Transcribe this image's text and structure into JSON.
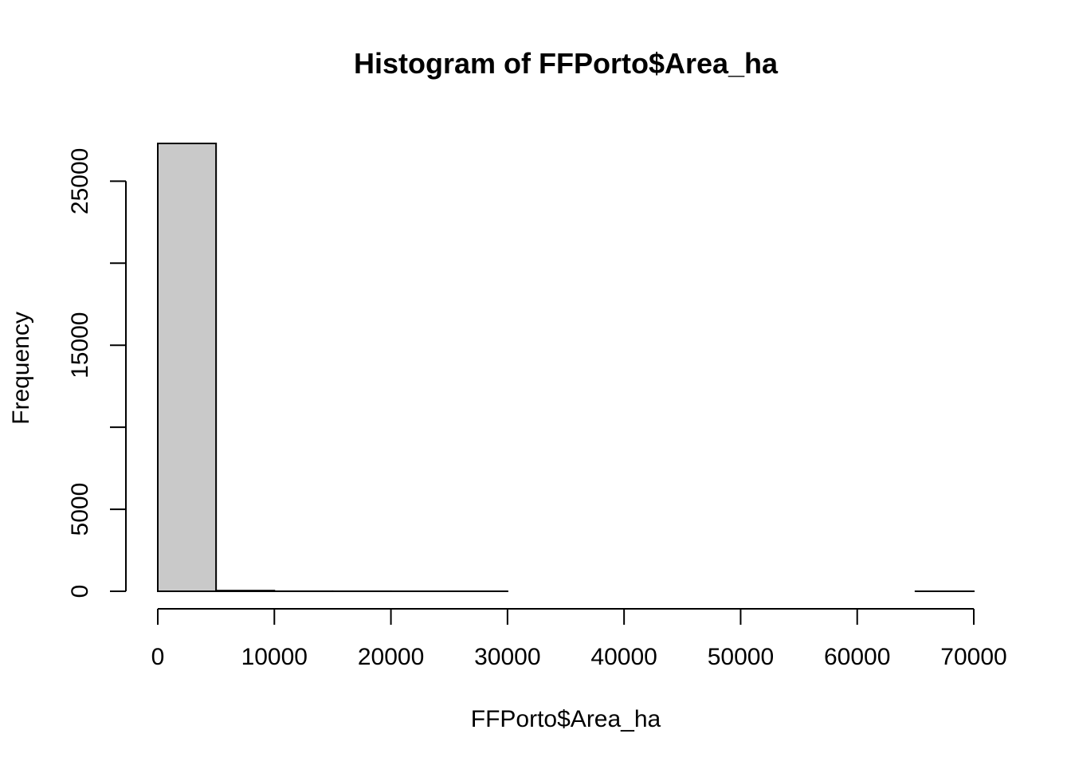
{
  "chart_data": {
    "type": "bar",
    "subtype": "histogram",
    "title": "Histogram of FFPorto$Area_ha",
    "xlabel": "FFPorto$Area_ha",
    "ylabel": "Frequency",
    "bins": [
      {
        "start": 0,
        "end": 5000,
        "count": 27300
      },
      {
        "start": 5000,
        "end": 10000,
        "count": 40
      },
      {
        "start": 10000,
        "end": 15000,
        "count": 4
      },
      {
        "start": 15000,
        "end": 20000,
        "count": 2
      },
      {
        "start": 20000,
        "end": 25000,
        "count": 1
      },
      {
        "start": 25000,
        "end": 30000,
        "count": 1
      },
      {
        "start": 30000,
        "end": 35000,
        "count": 0
      },
      {
        "start": 35000,
        "end": 40000,
        "count": 0
      },
      {
        "start": 40000,
        "end": 45000,
        "count": 0
      },
      {
        "start": 45000,
        "end": 50000,
        "count": 0
      },
      {
        "start": 50000,
        "end": 55000,
        "count": 0
      },
      {
        "start": 55000,
        "end": 60000,
        "count": 0
      },
      {
        "start": 60000,
        "end": 65000,
        "count": 0
      },
      {
        "start": 65000,
        "end": 70000,
        "count": 1
      }
    ],
    "xlim": [
      0,
      70000
    ],
    "ylim": [
      0,
      27300
    ],
    "x_ticks": [
      0,
      10000,
      20000,
      30000,
      40000,
      50000,
      60000,
      70000
    ],
    "x_tick_labels": [
      "0",
      "10000",
      "20000",
      "30000",
      "40000",
      "50000",
      "60000",
      "70000"
    ],
    "y_ticks": [
      0,
      5000,
      10000,
      15000,
      20000,
      25000
    ],
    "y_tick_labels": [
      "0",
      "5000",
      "",
      "15000",
      "",
      "25000"
    ],
    "grid": false,
    "bar_fill": "#c9c9c9",
    "bar_stroke": "#000000"
  }
}
